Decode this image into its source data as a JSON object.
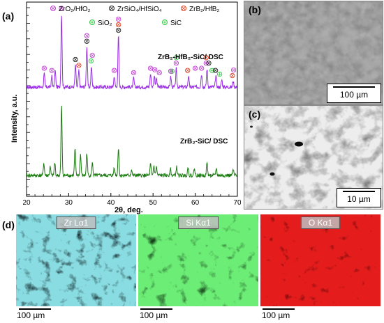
{
  "panels": {
    "a": "(a)",
    "b": "(b)",
    "c": "(c)",
    "d": "(d)"
  },
  "legend": {
    "zro2_hfo2": "ZrO₂/HfO₂",
    "zrsio4_hfsio4": "ZrSiO₄/HfSiO₄",
    "zrb2_hfb2": "ZrB₂/HfB₂",
    "sio2": "SiO₂",
    "sic": "SiC"
  },
  "colors": {
    "purple_trace": "#9a2ee6",
    "green_trace": "#1a7a10",
    "zro2_marker": "#c33fd6",
    "zrsio4_marker": "#222222",
    "zrb2_marker": "#e04020",
    "sio2_marker": "#2ecc40",
    "sic_marker": "#2ecc40"
  },
  "chart_data": {
    "type": "line",
    "xlabel": "2θ, deg.",
    "ylabel": "Intensity, a.u.",
    "xlim": [
      20,
      70
    ],
    "x_ticks": [
      "20",
      "30",
      "40",
      "50",
      "60",
      "70"
    ],
    "series": [
      {
        "name": "ZrB₂-HfB₂-SiC/ DSC",
        "peaks": [
          [
            24.2,
            0.18
          ],
          [
            26.0,
            0.15
          ],
          [
            26.8,
            0.22
          ],
          [
            28.3,
            1.0
          ],
          [
            31.6,
            0.3
          ],
          [
            32.4,
            0.22
          ],
          [
            34.3,
            0.55
          ],
          [
            35.4,
            0.28
          ],
          [
            40.8,
            0.15
          ],
          [
            41.8,
            0.7
          ],
          [
            45.4,
            0.12
          ],
          [
            49.4,
            0.18
          ],
          [
            50.3,
            0.16
          ],
          [
            50.8,
            0.12
          ],
          [
            54.2,
            0.14
          ],
          [
            55.5,
            0.25
          ],
          [
            58.4,
            0.15
          ],
          [
            61.5,
            0.18
          ],
          [
            62.8,
            0.25
          ],
          [
            64.9,
            0.15
          ],
          [
            66.3,
            0.1
          ],
          [
            69.0,
            0.08
          ]
        ]
      },
      {
        "name": "ZrB₂-SiC/ DSC",
        "peaks": [
          [
            24.1,
            0.18
          ],
          [
            25.6,
            0.12
          ],
          [
            26.7,
            0.18
          ],
          [
            28.3,
            1.0
          ],
          [
            31.5,
            0.38
          ],
          [
            32.8,
            0.3
          ],
          [
            34.3,
            0.32
          ],
          [
            35.6,
            0.18
          ],
          [
            40.8,
            0.12
          ],
          [
            41.8,
            0.4
          ],
          [
            44.9,
            0.08
          ],
          [
            49.4,
            0.16
          ],
          [
            50.2,
            0.14
          ],
          [
            50.8,
            0.12
          ],
          [
            54.1,
            0.1
          ],
          [
            55.6,
            0.12
          ],
          [
            58.3,
            0.12
          ],
          [
            59.8,
            0.1
          ],
          [
            62.8,
            0.18
          ],
          [
            65.0,
            0.1
          ],
          [
            69.0,
            0.08
          ]
        ]
      }
    ],
    "markers": [
      {
        "phase": "zro2_hfo2",
        "x": 24.2
      },
      {
        "phase": "zro2_hfo2",
        "x": 26.0
      },
      {
        "phase": "zro2_hfo2",
        "x": 28.3
      },
      {
        "phase": "zrsio4_hfsio4",
        "x": 31.6
      },
      {
        "phase": "zrb2_hfb2",
        "x": 32.4
      },
      {
        "phase": "zrsio4_hfsio4",
        "x": 34.3
      },
      {
        "phase": "zro2_hfo2",
        "x": 34.3
      },
      {
        "phase": "sio2",
        "x": 35.3
      },
      {
        "phase": "zro2_hfo2",
        "x": 35.6
      },
      {
        "phase": "zro2_hfo2",
        "x": 40.8
      },
      {
        "phase": "zrsio4_hfsio4",
        "x": 41.8
      },
      {
        "phase": "zrb2_hfb2",
        "x": 41.8
      },
      {
        "phase": "zro2_hfo2",
        "x": 41.8
      },
      {
        "phase": "zro2_hfo2",
        "x": 45.4
      },
      {
        "phase": "zro2_hfo2",
        "x": 49.4
      },
      {
        "phase": "zro2_hfo2",
        "x": 50.4
      },
      {
        "phase": "zro2_hfo2",
        "x": 51.5
      },
      {
        "phase": "sio2",
        "x": 54.5
      },
      {
        "phase": "zro2_hfo2",
        "x": 54.2
      },
      {
        "phase": "zro2_hfo2",
        "x": 55.5
      },
      {
        "phase": "sic",
        "x": 55.5
      },
      {
        "phase": "zrb2_hfb2",
        "x": 58.2
      },
      {
        "phase": "zro2_hfo2",
        "x": 60.0
      },
      {
        "phase": "zro2_hfo2",
        "x": 61.5
      },
      {
        "phase": "zro2_hfo2",
        "x": 62.6
      },
      {
        "phase": "zrb2_hfb2",
        "x": 62.6
      },
      {
        "phase": "zrsio4_hfsio4",
        "x": 63.2
      },
      {
        "phase": "sio2",
        "x": 64.0
      },
      {
        "phase": "zrsio4_hfsio4",
        "x": 64.8
      },
      {
        "phase": "sic",
        "x": 65.8
      },
      {
        "phase": "zrb2_hfb2",
        "x": 68.8
      },
      {
        "phase": "zro2_hfo2",
        "x": 69.1
      }
    ]
  },
  "sem": {
    "b_scale": "100 µm",
    "c_scale": "10 µm"
  },
  "eds": [
    {
      "label": "Zr Lα1",
      "color": "#3fb7c2",
      "scale": "100 µm"
    },
    {
      "label": "Si Kα1",
      "color": "#2fd030",
      "scale": "100 µm"
    },
    {
      "label": "O Kα1",
      "color": "#e61a1a",
      "scale": "100 µm"
    }
  ]
}
